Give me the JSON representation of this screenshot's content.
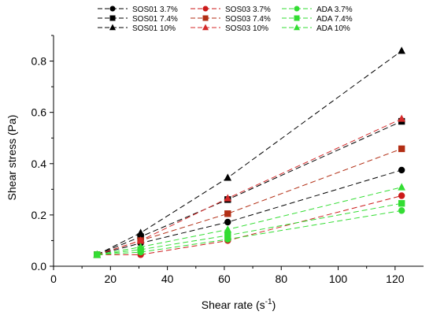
{
  "chart_data": {
    "type": "line",
    "title": "",
    "xlabel": "Shear rate (s",
    "xlabel_sup": "-1",
    "xlabel_end": ")",
    "ylabel": "Shear stress (Pa)",
    "xlim": [
      0,
      130
    ],
    "ylim": [
      0,
      0.9
    ],
    "xticks": [
      "0",
      "20",
      "40",
      "60",
      "80",
      "100",
      "120"
    ],
    "yticks": [
      "0.0",
      "0.2",
      "0.4",
      "0.6",
      "0.8"
    ],
    "grid": false,
    "legend_position": "top",
    "x": [
      15.3,
      30.6,
      61.2,
      122.3
    ],
    "series": [
      {
        "name": "SOS01 3.7%",
        "color": "#000000",
        "marker": "circle",
        "values": [
          0.045,
          0.09,
          0.172,
          0.375
        ]
      },
      {
        "name": "SOS01 7.4%",
        "color": "#000000",
        "marker": "square",
        "values": [
          0.045,
          0.115,
          0.26,
          0.565
        ]
      },
      {
        "name": "SOS01 10%",
        "color": "#000000",
        "marker": "triangle",
        "values": [
          0.045,
          0.13,
          0.345,
          0.84
        ]
      },
      {
        "name": "SOS03 3.7%",
        "color": "#cc1a1a",
        "marker": "circle",
        "values": [
          0.045,
          0.045,
          0.1,
          0.275
        ]
      },
      {
        "name": "SOS03 7.4%",
        "color": "#b22e14",
        "marker": "square",
        "values": [
          0.045,
          0.1,
          0.205,
          0.458
        ]
      },
      {
        "name": "SOS03 10%",
        "color": "#d42a2a",
        "marker": "triangle",
        "values": [
          0.045,
          0.1,
          0.265,
          0.575
        ]
      },
      {
        "name": "ADA 3.7%",
        "color": "#33dd33",
        "marker": "circle",
        "values": [
          0.045,
          0.055,
          0.105,
          0.217
        ]
      },
      {
        "name": "ADA 7.4%",
        "color": "#33dd33",
        "marker": "square",
        "values": [
          0.045,
          0.065,
          0.12,
          0.245
        ]
      },
      {
        "name": "ADA 10%",
        "color": "#33dd33",
        "marker": "triangle",
        "values": [
          0.045,
          0.075,
          0.143,
          0.308
        ]
      }
    ]
  }
}
